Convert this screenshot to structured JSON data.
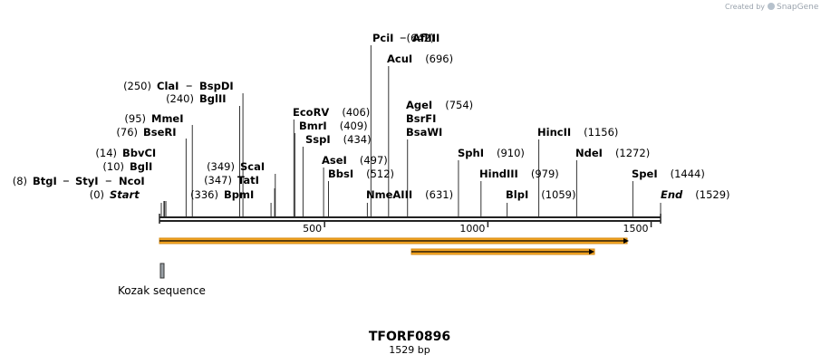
{
  "credit": {
    "prefix": "Created by",
    "brand": "SnapGene"
  },
  "construct": {
    "name": "TFORF0896",
    "length_label": "1529 bp",
    "length": 1529
  },
  "scale": {
    "ticks": [
      500,
      1000,
      1500
    ]
  },
  "sites": [
    {
      "id": "start",
      "label": "Start",
      "pos_label": "(0)",
      "pos": 0,
      "italic": true
    },
    {
      "id": "btgi",
      "label": "BtgI",
      "pos_label": "(8)",
      "pos": 8,
      "italic": false
    },
    {
      "id": "styi",
      "label": "StyI",
      "pos_label": "",
      "pos": 8,
      "italic": false
    },
    {
      "id": "ncoi",
      "label": "NcoI",
      "pos_label": "",
      "pos": 8,
      "italic": false
    },
    {
      "id": "bgli",
      "label": "BglI",
      "pos_label": "(10)",
      "pos": 10,
      "italic": false
    },
    {
      "id": "bbvci",
      "label": "BbvCI",
      "pos_label": "(14)",
      "pos": 14,
      "italic": false
    },
    {
      "id": "bseri",
      "label": "BseRI",
      "pos_label": "(76)",
      "pos": 76,
      "italic": false
    },
    {
      "id": "mmei",
      "label": "MmeI",
      "pos_label": "(95)",
      "pos": 95,
      "italic": false
    },
    {
      "id": "bglii",
      "label": "BglII",
      "pos_label": "(240)",
      "pos": 240,
      "italic": false
    },
    {
      "id": "clai",
      "label": "ClaI",
      "pos_label": "(250)",
      "pos": 250,
      "italic": false
    },
    {
      "id": "bspdi",
      "label": "BspDI",
      "pos_label": "",
      "pos": 250,
      "italic": false
    },
    {
      "id": "bpmi",
      "label": "BpmI",
      "pos_label": "(336)",
      "pos": 336,
      "italic": false
    },
    {
      "id": "tati",
      "label": "TatI",
      "pos_label": "(347)",
      "pos": 347,
      "italic": false
    },
    {
      "id": "scai",
      "label": "ScaI",
      "pos_label": "(349)",
      "pos": 349,
      "italic": false
    },
    {
      "id": "ecorv",
      "label": "EcoRV",
      "pos_label": "(406)",
      "pos": 406,
      "italic": false
    },
    {
      "id": "bmri",
      "label": "BmrI",
      "pos_label": "(409)",
      "pos": 409,
      "italic": false
    },
    {
      "id": "sspi",
      "label": "SspI",
      "pos_label": "(434)",
      "pos": 434,
      "italic": false
    },
    {
      "id": "asei",
      "label": "AseI",
      "pos_label": "(497)",
      "pos": 497,
      "italic": false
    },
    {
      "id": "bbsi",
      "label": "BbsI",
      "pos_label": "(512)",
      "pos": 512,
      "italic": false
    },
    {
      "id": "nmeaiii",
      "label": "NmeAIII",
      "pos_label": "(631)",
      "pos": 631,
      "italic": false
    },
    {
      "id": "pcii",
      "label": "PciI",
      "pos_label": "(642)",
      "pos": 642,
      "italic": false
    },
    {
      "id": "afliii",
      "label": "AflIII",
      "pos_label": "",
      "pos": 642,
      "italic": false
    },
    {
      "id": "acui",
      "label": "AcuI",
      "pos_label": "(696)",
      "pos": 696,
      "italic": false
    },
    {
      "id": "agei",
      "label": "AgeI",
      "pos_label": "(754)",
      "pos": 754,
      "italic": false
    },
    {
      "id": "bsrfi",
      "label": "BsrFI",
      "pos_label": "",
      "pos": 754,
      "italic": false
    },
    {
      "id": "bsawi",
      "label": "BsaWI",
      "pos_label": "",
      "pos": 754,
      "italic": false
    },
    {
      "id": "sphi",
      "label": "SphI",
      "pos_label": "(910)",
      "pos": 910,
      "italic": false
    },
    {
      "id": "hindiii",
      "label": "HindIII",
      "pos_label": "(979)",
      "pos": 979,
      "italic": false
    },
    {
      "id": "blpi",
      "label": "BlpI",
      "pos_label": "(1059)",
      "pos": 1059,
      "italic": false
    },
    {
      "id": "hincii",
      "label": "HincII",
      "pos_label": "(1156)",
      "pos": 1156,
      "italic": false
    },
    {
      "id": "ndei",
      "label": "NdeI",
      "pos_label": "(1272)",
      "pos": 1272,
      "italic": false
    },
    {
      "id": "spei",
      "label": "SpeI",
      "pos_label": "(1444)",
      "pos": 1444,
      "italic": false
    },
    {
      "id": "end",
      "label": "End",
      "pos_label": "(1529)",
      "pos": 1529,
      "italic": true
    }
  ],
  "features": [
    {
      "id": "orf-main",
      "label": "",
      "start": 0,
      "end": 1500,
      "color": "#f5a623",
      "direction": "forward"
    },
    {
      "id": "orf-inner",
      "label": "",
      "start": 789,
      "end": 1368,
      "color": "#f5a623",
      "direction": "forward"
    },
    {
      "id": "kozak",
      "label": "Kozak sequence",
      "start": 0,
      "end": 8,
      "color": "#9aa0a6",
      "direction": "none"
    }
  ]
}
